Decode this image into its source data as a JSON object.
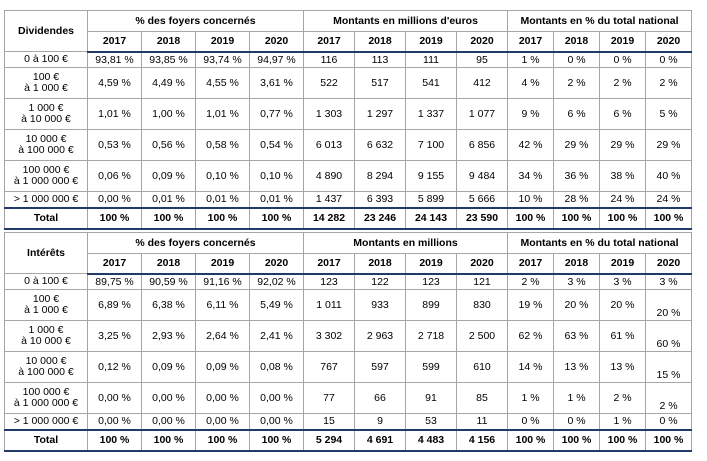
{
  "tables": [
    {
      "id": "dividendes",
      "corner": "Dividendes",
      "group_headers": [
        "% des foyers concernés",
        "Montants en millions d'euros",
        "Montants en % du total national"
      ],
      "years": [
        "2017",
        "2018",
        "2019",
        "2020"
      ],
      "rows": [
        {
          "label": [
            "0 à 100 €"
          ],
          "pct": [
            "93,81 %",
            "93,85 %",
            "93,74 %",
            "94,97 %"
          ],
          "amt": [
            "116",
            "113",
            "111",
            "95"
          ],
          "share": [
            "1 %",
            "0 %",
            "0 %",
            "0 %"
          ]
        },
        {
          "label": [
            "100 €",
            "à 1 000 €"
          ],
          "pct": [
            "4,59 %",
            "4,49 %",
            "4,55 %",
            "3,61 %"
          ],
          "amt": [
            "522",
            "517",
            "541",
            "412"
          ],
          "share": [
            "4 %",
            "2 %",
            "2 %",
            "2 %"
          ]
        },
        {
          "label": [
            "1 000 €",
            "à 10 000 €"
          ],
          "pct": [
            "1,01 %",
            "1,00 %",
            "1,01 %",
            "0,77 %"
          ],
          "amt": [
            "1 303",
            "1 297",
            "1 337",
            "1 077"
          ],
          "share": [
            "9 %",
            "6 %",
            "6 %",
            "5 %"
          ]
        },
        {
          "label": [
            "10 000 €",
            "à 100 000 €"
          ],
          "pct": [
            "0,53 %",
            "0,56 %",
            "0,58 %",
            "0,54 %"
          ],
          "amt": [
            "6 013",
            "6 632",
            "7 100",
            "6 856"
          ],
          "share": [
            "42 %",
            "29 %",
            "29 %",
            "29 %"
          ]
        },
        {
          "label": [
            "100 000 €",
            "à 1 000 000 €"
          ],
          "pct": [
            "0,06 %",
            "0,09 %",
            "0,10 %",
            "0,10 %"
          ],
          "amt": [
            "4 890",
            "8 294",
            "9 155",
            "9 484"
          ],
          "share": [
            "34 %",
            "36 %",
            "38 %",
            "40 %"
          ]
        },
        {
          "label": [
            "> 1 000 000 €"
          ],
          "pct": [
            "0,00 %",
            "0,01 %",
            "0,01 %",
            "0,01 %"
          ],
          "amt": [
            "1 437",
            "6 393",
            "5 899",
            "5 666"
          ],
          "share": [
            "10 %",
            "28 %",
            "24 %",
            "24 %"
          ]
        }
      ],
      "total": {
        "label": "Total",
        "pct": [
          "100 %",
          "100 %",
          "100 %",
          "100 %"
        ],
        "amt": [
          "14 282",
          "23 246",
          "24 143",
          "23 590"
        ],
        "share": [
          "100 %",
          "100 %",
          "100 %",
          "100 %"
        ]
      }
    },
    {
      "id": "interets",
      "corner": "Intérêts",
      "group_headers": [
        "% des foyers concernés",
        "Montants en millions",
        "Montants en % du total national"
      ],
      "years": [
        "2017",
        "2018",
        "2019",
        "2020"
      ],
      "rows": [
        {
          "label": [
            "0 à 100 €"
          ],
          "pct": [
            "89,75 %",
            "90,59 %",
            "91,16 %",
            "92,02 %"
          ],
          "amt": [
            "123",
            "122",
            "123",
            "121"
          ],
          "share": [
            "2 %",
            "3 %",
            "3 %",
            "3 %"
          ]
        },
        {
          "label": [
            "100 €",
            "à 1 000 €"
          ],
          "pct": [
            "6,89 %",
            "6,38 %",
            "6,11 %",
            "5,49 %"
          ],
          "amt": [
            "1 011",
            "933",
            "899",
            "830"
          ],
          "share": [
            "19 %",
            "20 %",
            "20 %",
            "20 %"
          ]
        },
        {
          "label": [
            "1 000 €",
            "à 10 000 €"
          ],
          "pct": [
            "3,25 %",
            "2,93 %",
            "2,64 %",
            "2,41 %"
          ],
          "amt": [
            "3 302",
            "2 963",
            "2 718",
            "2 500"
          ],
          "share": [
            "62 %",
            "63 %",
            "61 %",
            "60 %"
          ]
        },
        {
          "label": [
            "10 000 €",
            "à 100 000 €"
          ],
          "pct": [
            "0,12 %",
            "0,09 %",
            "0,09 %",
            "0,08 %"
          ],
          "amt": [
            "767",
            "597",
            "599",
            "610"
          ],
          "share": [
            "14 %",
            "13 %",
            "13 %",
            "15 %"
          ]
        },
        {
          "label": [
            "100 000 €",
            "à 1 000 000 €"
          ],
          "pct": [
            "0,00 %",
            "0,00 %",
            "0,00 %",
            "0,00 %"
          ],
          "amt": [
            "77",
            "66",
            "91",
            "85"
          ],
          "share": [
            "1 %",
            "1 %",
            "2 %",
            "2 %"
          ]
        },
        {
          "label": [
            "> 1 000 000 €"
          ],
          "pct": [
            "0,00 %",
            "0,00 %",
            "0,00 %",
            "0,00 %"
          ],
          "amt": [
            "15",
            "9",
            "53",
            "11"
          ],
          "share": [
            "0 %",
            "0 %",
            "1 %",
            "0 %"
          ]
        }
      ],
      "total": {
        "label": "Total",
        "pct": [
          "100 %",
          "100 %",
          "100 %",
          "100 %"
        ],
        "amt": [
          "5 294",
          "4 691",
          "4 483",
          "4 156"
        ],
        "share": [
          "100 %",
          "100 %",
          "100 %",
          "100 %"
        ]
      }
    }
  ]
}
